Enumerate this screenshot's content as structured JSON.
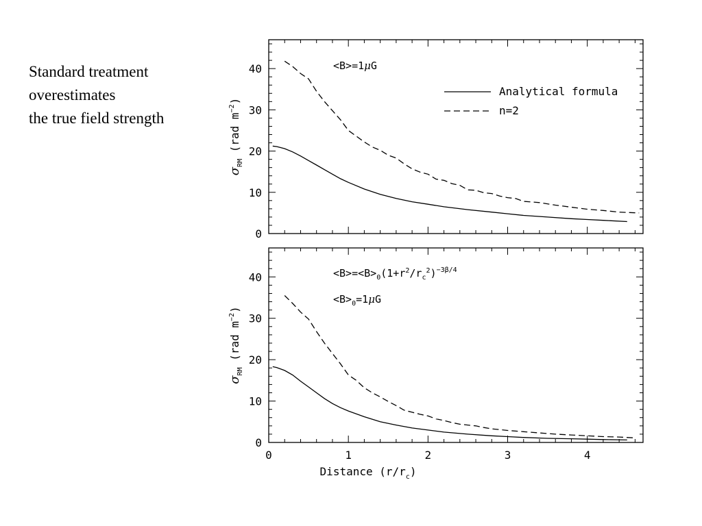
{
  "side_text": {
    "lines": [
      "Standard treatment",
      "overestimates",
      "the true field strength"
    ]
  },
  "chart_data": [
    {
      "type": "line",
      "ylabel_main": "σ",
      "ylabel_sub": "RM",
      "ylabel_unit": " (rad m",
      "ylabel_sup": "−2",
      "ylabel_close": ")",
      "xlim": [
        0,
        4.7
      ],
      "ylim": [
        0,
        47
      ],
      "yticks": [
        0,
        10,
        20,
        30,
        40
      ],
      "annotations": [
        {
          "text": "<B>=1",
          "mu": "μ",
          "tail": "G",
          "x": 0.82,
          "y": 41.5
        }
      ],
      "legend": {
        "placement": "top-right",
        "entries": [
          {
            "label": "Analytical formula",
            "style": "solid"
          },
          {
            "label": "n=2",
            "style": "dashed"
          }
        ]
      },
      "series": [
        {
          "name": "Analytical formula",
          "style": "solid",
          "x": [
            0.05,
            0.1,
            0.2,
            0.3,
            0.4,
            0.5,
            0.6,
            0.7,
            0.8,
            0.9,
            1.0,
            1.2,
            1.4,
            1.6,
            1.8,
            2.0,
            2.2,
            2.5,
            2.8,
            3.0,
            3.2,
            3.5,
            3.8,
            4.0,
            4.2,
            4.5
          ],
          "y": [
            21.2,
            21.1,
            20.6,
            19.8,
            18.8,
            17.7,
            16.6,
            15.5,
            14.4,
            13.3,
            12.4,
            10.8,
            9.5,
            8.5,
            7.7,
            7.1,
            6.5,
            5.8,
            5.2,
            4.8,
            4.4,
            4.0,
            3.6,
            3.4,
            3.2,
            2.9
          ]
        },
        {
          "name": "n=2",
          "style": "dashed",
          "x": [
            0.2,
            0.3,
            0.4,
            0.5,
            0.6,
            0.7,
            0.8,
            0.9,
            1.0,
            1.1,
            1.2,
            1.3,
            1.4,
            1.5,
            1.6,
            1.7,
            1.8,
            1.9,
            2.0,
            2.1,
            2.2,
            2.3,
            2.4,
            2.5,
            2.6,
            2.7,
            2.8,
            2.9,
            3.0,
            3.1,
            3.2,
            3.4,
            3.6,
            3.8,
            4.0,
            4.2,
            4.4,
            4.65
          ],
          "y": [
            41.8,
            40.5,
            38.8,
            37.5,
            34.5,
            32.0,
            29.8,
            27.6,
            25.0,
            23.6,
            22.2,
            21.0,
            20.2,
            19.0,
            18.3,
            16.9,
            15.7,
            14.9,
            14.4,
            13.2,
            12.9,
            12.1,
            11.7,
            10.6,
            10.5,
            9.9,
            9.7,
            9.1,
            8.7,
            8.5,
            7.8,
            7.5,
            6.9,
            6.4,
            5.9,
            5.6,
            5.2,
            5.0
          ]
        }
      ]
    },
    {
      "type": "line",
      "xlabel_main": "Distance (r/r",
      "xlabel_sub": "c",
      "xlabel_close": ")",
      "ylabel_main": "σ",
      "ylabel_sub": "RM",
      "ylabel_unit": " (rad m",
      "ylabel_sup": "−2",
      "ylabel_close": ")",
      "xlim": [
        0,
        4.7
      ],
      "ylim": [
        0,
        47
      ],
      "xticks": [
        0,
        1,
        2,
        3,
        4
      ],
      "yticks": [
        0,
        10,
        20,
        30,
        40
      ],
      "annotations": [
        {
          "text": "<B>=<B>",
          "sub0": "0",
          "mid": "(1+r",
          "sup1": "2",
          "mid2": "/r",
          "sub1": "c",
          "sup2": "2",
          "close": ")",
          "exp": "−3β/4"
        },
        {
          "text": "<B>",
          "sub0": "0",
          "mid": "=1",
          "mu": "μ",
          "tail": "G"
        }
      ],
      "series": [
        {
          "name": "Analytical formula",
          "style": "solid",
          "x": [
            0.05,
            0.1,
            0.2,
            0.3,
            0.4,
            0.5,
            0.6,
            0.7,
            0.8,
            0.9,
            1.0,
            1.2,
            1.4,
            1.6,
            1.8,
            2.0,
            2.2,
            2.5,
            2.8,
            3.0,
            3.2,
            3.5,
            3.8,
            4.0,
            4.2,
            4.5
          ],
          "y": [
            18.3,
            18.1,
            17.4,
            16.3,
            14.8,
            13.4,
            12.0,
            10.6,
            9.4,
            8.4,
            7.6,
            6.2,
            5.0,
            4.2,
            3.5,
            3.0,
            2.5,
            2.0,
            1.6,
            1.4,
            1.2,
            1.0,
            0.9,
            0.8,
            0.7,
            0.6
          ]
        },
        {
          "name": "n=2",
          "style": "dashed",
          "x": [
            0.2,
            0.3,
            0.4,
            0.5,
            0.6,
            0.7,
            0.8,
            0.9,
            1.0,
            1.1,
            1.2,
            1.3,
            1.4,
            1.5,
            1.6,
            1.7,
            1.8,
            1.9,
            2.0,
            2.1,
            2.2,
            2.3,
            2.4,
            2.5,
            2.6,
            2.7,
            2.8,
            2.9,
            3.0,
            3.2,
            3.4,
            3.6,
            3.8,
            4.0,
            4.2,
            4.4,
            4.6
          ],
          "y": [
            35.5,
            33.6,
            31.5,
            29.8,
            26.8,
            24.0,
            21.5,
            19.0,
            16.3,
            15.0,
            13.2,
            12.0,
            11.0,
            9.9,
            8.9,
            7.8,
            7.3,
            6.8,
            6.4,
            5.7,
            5.3,
            4.8,
            4.4,
            4.2,
            4.0,
            3.6,
            3.3,
            3.1,
            2.9,
            2.6,
            2.3,
            2.0,
            1.8,
            1.6,
            1.4,
            1.3,
            1.1
          ]
        }
      ]
    }
  ]
}
